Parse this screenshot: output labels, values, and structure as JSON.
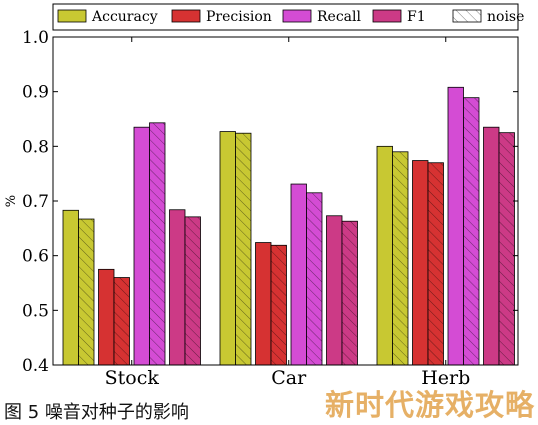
{
  "chart_data": {
    "type": "bar",
    "categories": [
      "Stock",
      "Car",
      "Herb"
    ],
    "series": [
      {
        "name": "Accuracy",
        "values": [
          0.683,
          0.827,
          0.8
        ],
        "noise_values": [
          0.667,
          0.824,
          0.79
        ],
        "color": "#c8c832"
      },
      {
        "name": "Precision",
        "values": [
          0.575,
          0.624,
          0.774
        ],
        "noise_values": [
          0.56,
          0.619,
          0.77
        ],
        "color": "#d63232"
      },
      {
        "name": "Recall",
        "values": [
          0.835,
          0.731,
          0.908
        ],
        "noise_values": [
          0.843,
          0.715,
          0.889
        ],
        "color": "#d44cd4"
      },
      {
        "name": "F1",
        "values": [
          0.684,
          0.673,
          0.835
        ],
        "noise_values": [
          0.671,
          0.663,
          0.825
        ],
        "color": "#cc3a86"
      }
    ],
    "noise_legend_label": "noise",
    "ylabel": "%",
    "ylim": [
      0.4,
      1.0
    ],
    "yticks": [
      "0.4",
      "0.5",
      "0.6",
      "0.7",
      "0.8",
      "0.9",
      "1.0"
    ],
    "legend_position": "top",
    "grid": false
  },
  "caption": "图 5 噪音对种子的影响",
  "watermark": "新时代游戏攻略"
}
